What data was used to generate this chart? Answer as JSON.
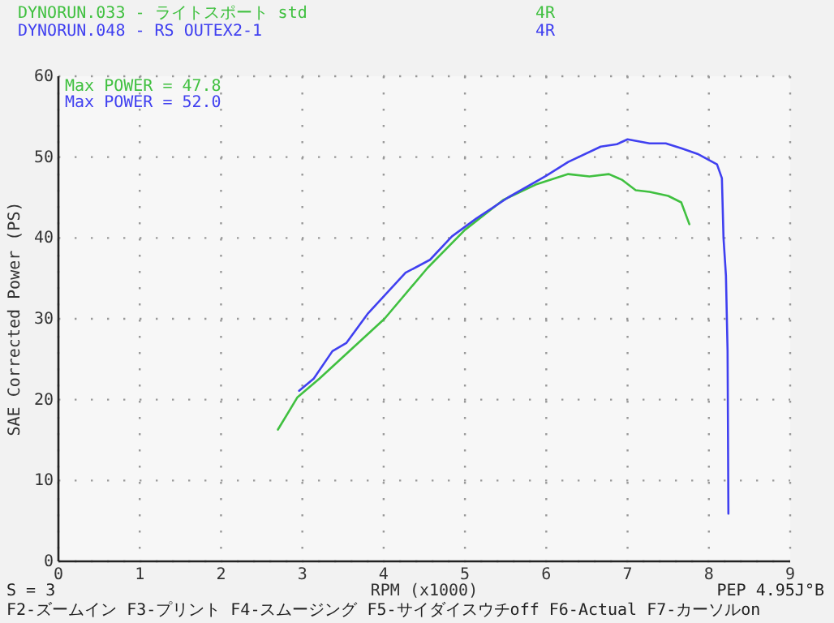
{
  "chart_data": {
    "type": "line",
    "xlabel": "RPM (x1000)",
    "ylabel": "SAE Corrected Power (PS)",
    "xlim": [
      0,
      9
    ],
    "ylim": [
      0,
      60
    ],
    "xticks": [
      0,
      1,
      2,
      3,
      4,
      5,
      6,
      7,
      8,
      9
    ],
    "yticks": [
      0,
      10,
      20,
      30,
      40,
      50,
      60
    ],
    "grid": true,
    "marker": "none",
    "line_style": "solid",
    "series": [
      {
        "name": "DYNORUN.033 - ライトスポート std 4R",
        "color": "#40c040",
        "x": [
          2.7,
          2.94,
          3.21,
          4.01,
          4.54,
          5.0,
          5.47,
          5.87,
          6.27,
          6.53,
          6.77,
          6.93,
          7.1,
          7.27,
          7.5,
          7.66,
          7.76
        ],
        "values": [
          16.3,
          20.3,
          22.6,
          30.0,
          36.3,
          41.0,
          44.7,
          46.6,
          47.9,
          47.6,
          47.9,
          47.2,
          45.9,
          45.7,
          45.2,
          44.4,
          41.7
        ]
      },
      {
        "name": "DYNORUN.048 - RS OUTEX2-1 4R",
        "color": "#4040f0",
        "x": [
          2.96,
          3.14,
          3.37,
          3.54,
          3.81,
          4.27,
          4.57,
          4.84,
          5.14,
          5.53,
          6.0,
          6.27,
          6.67,
          6.87,
          7.0,
          7.27,
          7.47,
          7.66,
          7.86,
          8.1,
          8.16,
          8.18,
          8.21,
          8.23,
          8.24
        ],
        "values": [
          21.1,
          22.6,
          26.0,
          27.0,
          30.7,
          35.7,
          37.3,
          40.2,
          42.4,
          45.0,
          47.7,
          49.4,
          51.3,
          51.6,
          52.2,
          51.7,
          51.7,
          51.1,
          50.4,
          49.1,
          47.4,
          40.0,
          35.3,
          26.0,
          5.9
        ]
      }
    ],
    "annotations": [
      "Max POWER = 47.8",
      "Max POWER = 52.0",
      "S = 3",
      "PEP 4.95J°B",
      "F2-ズームイン F3-プリント F4-スムージング F5-サイダイスウチoff F6-Actual F7-カーソルon"
    ]
  }
}
